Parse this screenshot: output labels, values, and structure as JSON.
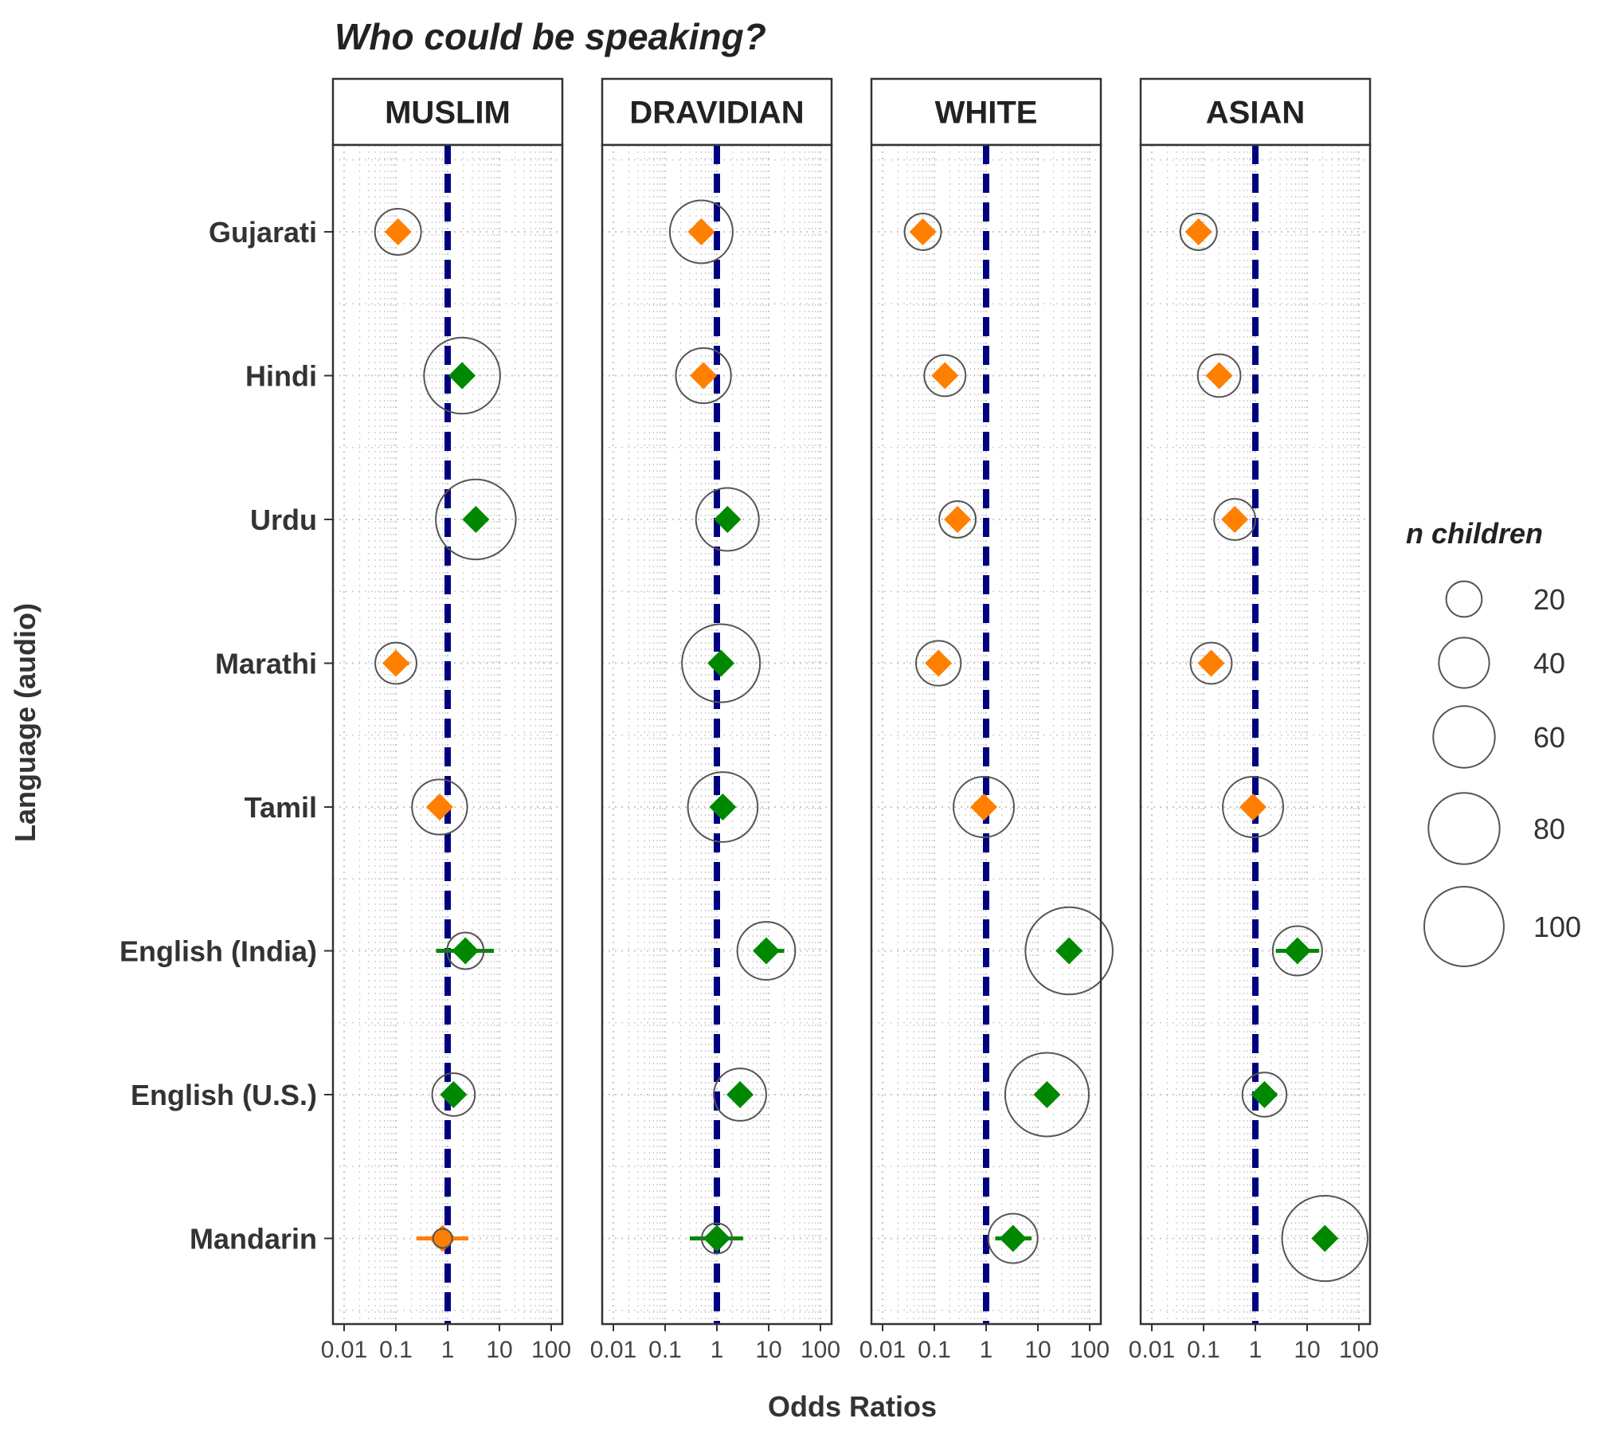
{
  "chart_data": {
    "type": "scatter",
    "title": "Who could be speaking?",
    "xlabel": "Odds Ratios",
    "ylabel": "Language (audio)",
    "x_scale": "log10",
    "xlim": [
      0.01,
      100
    ],
    "x_ticks": [
      "0.01",
      "0.1",
      "1",
      "10",
      "100"
    ],
    "reference_line": 1,
    "categories": [
      "Gujarati",
      "Hindi",
      "Urdu",
      "Marathi",
      "Tamil",
      "English (India)",
      "English (U.S.)",
      "Mandarin"
    ],
    "colors": {
      "above_1": "#008800",
      "below_1": "#ff7f00",
      "reference": "#00007f",
      "circle": "#555555"
    },
    "grid": true,
    "legend": {
      "title": "n children",
      "placement": "right",
      "entries": [
        "20",
        "40",
        "60",
        "80",
        "100"
      ]
    },
    "panels": [
      {
        "name": "MUSLIM",
        "rows": [
          {
            "language": "Gujarati",
            "or": 0.11,
            "lo": 0.09,
            "hi": 0.14,
            "n": 35
          },
          {
            "language": "Hindi",
            "or": 1.9,
            "lo": 1.5,
            "hi": 2.4,
            "n": 95
          },
          {
            "language": "Urdu",
            "or": 3.5,
            "lo": 2.8,
            "hi": 4.5,
            "n": 105
          },
          {
            "language": "Marathi",
            "or": 0.1,
            "lo": 0.07,
            "hi": 0.18,
            "n": 28
          },
          {
            "language": "Tamil",
            "or": 0.7,
            "lo": 0.55,
            "hi": 0.9,
            "n": 50
          },
          {
            "language": "English (India)",
            "or": 2.2,
            "lo": 0.6,
            "hi": 7.8,
            "n": 22
          },
          {
            "language": "English (U.S.)",
            "or": 1.3,
            "lo": 0.9,
            "hi": 1.9,
            "n": 30
          },
          {
            "language": "Mandarin",
            "or": 0.8,
            "lo": 0.25,
            "hi": 2.5,
            "n": 6
          }
        ]
      },
      {
        "name": "DRAVIDIAN",
        "rows": [
          {
            "language": "Gujarati",
            "or": 0.5,
            "lo": 0.4,
            "hi": 0.65,
            "n": 65
          },
          {
            "language": "Hindi",
            "or": 0.55,
            "lo": 0.45,
            "hi": 0.7,
            "n": 50
          },
          {
            "language": "Urdu",
            "or": 1.6,
            "lo": 1.3,
            "hi": 2.0,
            "n": 65
          },
          {
            "language": "Marathi",
            "or": 1.2,
            "lo": 1.0,
            "hi": 1.5,
            "n": 100
          },
          {
            "language": "Tamil",
            "or": 1.3,
            "lo": 1.05,
            "hi": 1.6,
            "n": 80
          },
          {
            "language": "English (India)",
            "or": 9,
            "lo": 5.5,
            "hi": 20,
            "n": 55
          },
          {
            "language": "English (U.S.)",
            "or": 2.8,
            "lo": 2.0,
            "hi": 3.8,
            "n": 45
          },
          {
            "language": "Mandarin",
            "or": 1.0,
            "lo": 0.3,
            "hi": 3.2,
            "n": 15
          }
        ]
      },
      {
        "name": "WHITE",
        "rows": [
          {
            "language": "Gujarati",
            "or": 0.06,
            "lo": 0.04,
            "hi": 0.1,
            "n": 22
          },
          {
            "language": "Hindi",
            "or": 0.16,
            "lo": 0.12,
            "hi": 0.21,
            "n": 28
          },
          {
            "language": "Urdu",
            "or": 0.28,
            "lo": 0.18,
            "hi": 0.42,
            "n": 22
          },
          {
            "language": "Marathi",
            "or": 0.12,
            "lo": 0.09,
            "hi": 0.16,
            "n": 33
          },
          {
            "language": "Tamil",
            "or": 0.9,
            "lo": 0.75,
            "hi": 1.1,
            "n": 60
          },
          {
            "language": "English (India)",
            "or": 40,
            "lo": 28,
            "hi": 58,
            "n": 125
          },
          {
            "language": "English (U.S.)",
            "or": 15,
            "lo": 11,
            "hi": 20,
            "n": 115
          },
          {
            "language": "Mandarin",
            "or": 3.3,
            "lo": 1.5,
            "hi": 7.5,
            "n": 40
          }
        ]
      },
      {
        "name": "ASIAN",
        "rows": [
          {
            "language": "Gujarati",
            "or": 0.08,
            "lo": 0.06,
            "hi": 0.1,
            "n": 22
          },
          {
            "language": "Hindi",
            "or": 0.2,
            "lo": 0.15,
            "hi": 0.27,
            "n": 30
          },
          {
            "language": "Urdu",
            "or": 0.4,
            "lo": 0.3,
            "hi": 0.55,
            "n": 28
          },
          {
            "language": "Marathi",
            "or": 0.14,
            "lo": 0.11,
            "hi": 0.18,
            "n": 28
          },
          {
            "language": "Tamil",
            "or": 0.9,
            "lo": 0.75,
            "hi": 1.1,
            "n": 60
          },
          {
            "language": "English (India)",
            "or": 6.5,
            "lo": 2.5,
            "hi": 17,
            "n": 40
          },
          {
            "language": "English (U.S.)",
            "or": 1.5,
            "lo": 1.0,
            "hi": 2.6,
            "n": 32
          },
          {
            "language": "Mandarin",
            "or": 22,
            "lo": 14,
            "hi": 35,
            "n": 120
          }
        ]
      }
    ]
  }
}
